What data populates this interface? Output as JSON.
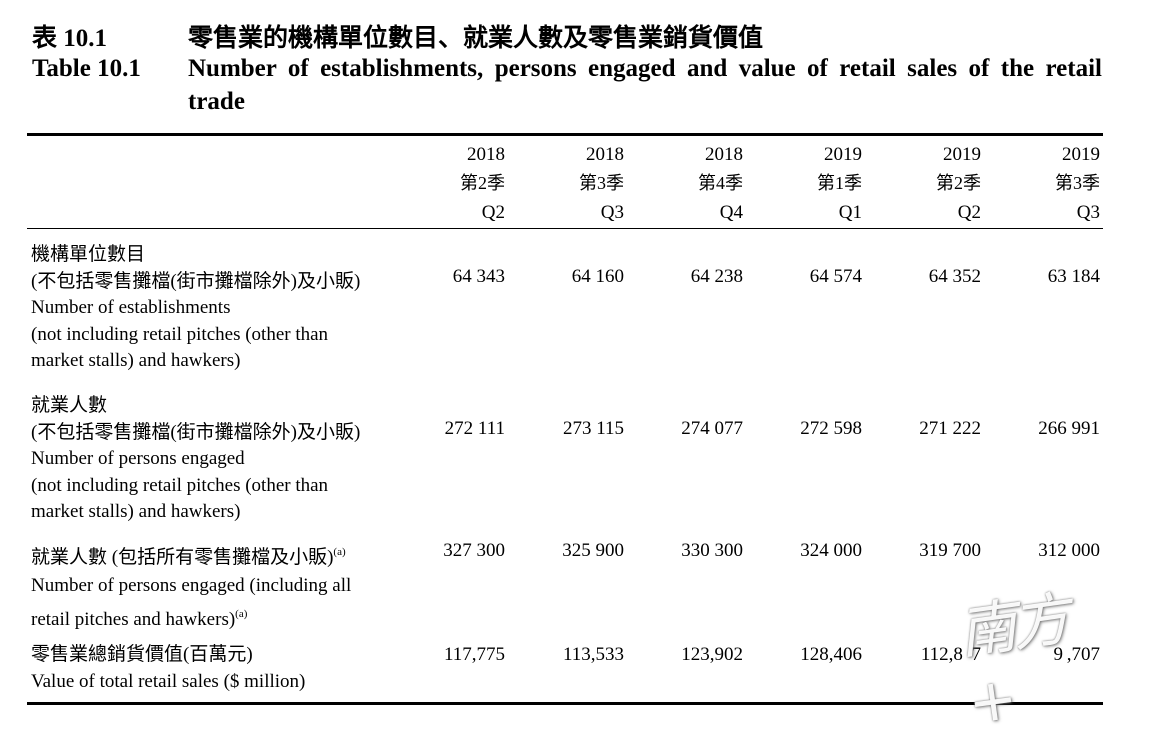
{
  "table": {
    "number_zh": "表 10.1",
    "title_zh": "零售業的機構單位數目、就業人數及零售業銷貨價值",
    "number_en": "Table 10.1",
    "title_en": "Number of establishments, persons engaged and value of retail sales of the retail trade"
  },
  "columns": [
    {
      "year": "2018",
      "quarter_zh": "第2季",
      "quarter_en": "Q2"
    },
    {
      "year": "2018",
      "quarter_zh": "第3季",
      "quarter_en": "Q3"
    },
    {
      "year": "2018",
      "quarter_zh": "第4季",
      "quarter_en": "Q4"
    },
    {
      "year": "2019",
      "quarter_zh": "第1季",
      "quarter_en": "Q1"
    },
    {
      "year": "2019",
      "quarter_zh": "第2季",
      "quarter_en": "Q2"
    },
    {
      "year": "2019",
      "quarter_zh": "第3季",
      "quarter_en": "Q3"
    }
  ],
  "rows": [
    {
      "label_lines": [
        "機構單位數目",
        "(不包括零售攤檔(街市攤檔除外)及小販)",
        "Number of establishments",
        "(not including retail pitches (other than",
        "market stalls) and hawkers)"
      ],
      "values": [
        "64 343",
        "64 160",
        "64 238",
        "64 574",
        "64 352",
        "63 184"
      ]
    },
    {
      "label_lines": [
        "就業人數",
        "(不包括零售攤檔(街市攤檔除外)及小販)",
        "Number of persons engaged",
        "(not including retail pitches (other than",
        "market stalls) and hawkers)"
      ],
      "values": [
        "272 111",
        "273 115",
        "274 077",
        "272 598",
        "271 222",
        "266 991"
      ]
    },
    {
      "label_zh": "就業人數 (包括所有零售攤檔及小販)",
      "label_en_1": "Number of persons engaged (including all",
      "label_en_2": "retail pitches and hawkers)",
      "footnote": "(a)",
      "values": [
        "327 300",
        "325 900",
        "330 300",
        "324 000",
        "319 700",
        "312 000"
      ]
    },
    {
      "label_lines": [
        "零售業總銷貨價值(百萬元)",
        "Value of total retail sales ($ million)"
      ],
      "values": [
        "117,775",
        "113,533",
        "123,902",
        "128,406",
        "112,8  7",
        "9 ,707"
      ]
    }
  ],
  "watermark": "南方+"
}
